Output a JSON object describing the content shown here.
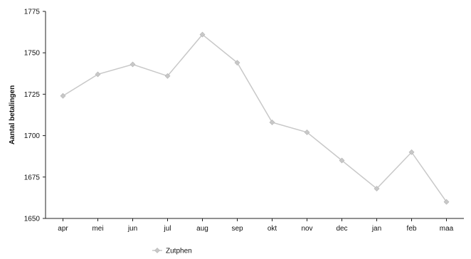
{
  "chart_data": {
    "type": "line",
    "title": "",
    "xlabel": "",
    "ylabel": "Aantal betalingen",
    "ylim": [
      1650,
      1775
    ],
    "yticks": [
      1650,
      1675,
      1700,
      1725,
      1750,
      1775
    ],
    "categories": [
      "apr",
      "mei",
      "jun",
      "jul",
      "aug",
      "sep",
      "okt",
      "nov",
      "dec",
      "jan",
      "feb",
      "maa"
    ],
    "series": [
      {
        "name": "Zutphen",
        "values": [
          1724,
          1737,
          1743,
          1736,
          1761,
          1744,
          1708,
          1702,
          1685,
          1668,
          1690,
          1660
        ],
        "color": "#c8c8c8"
      }
    ],
    "grid": false,
    "legend": "bottom-left"
  }
}
